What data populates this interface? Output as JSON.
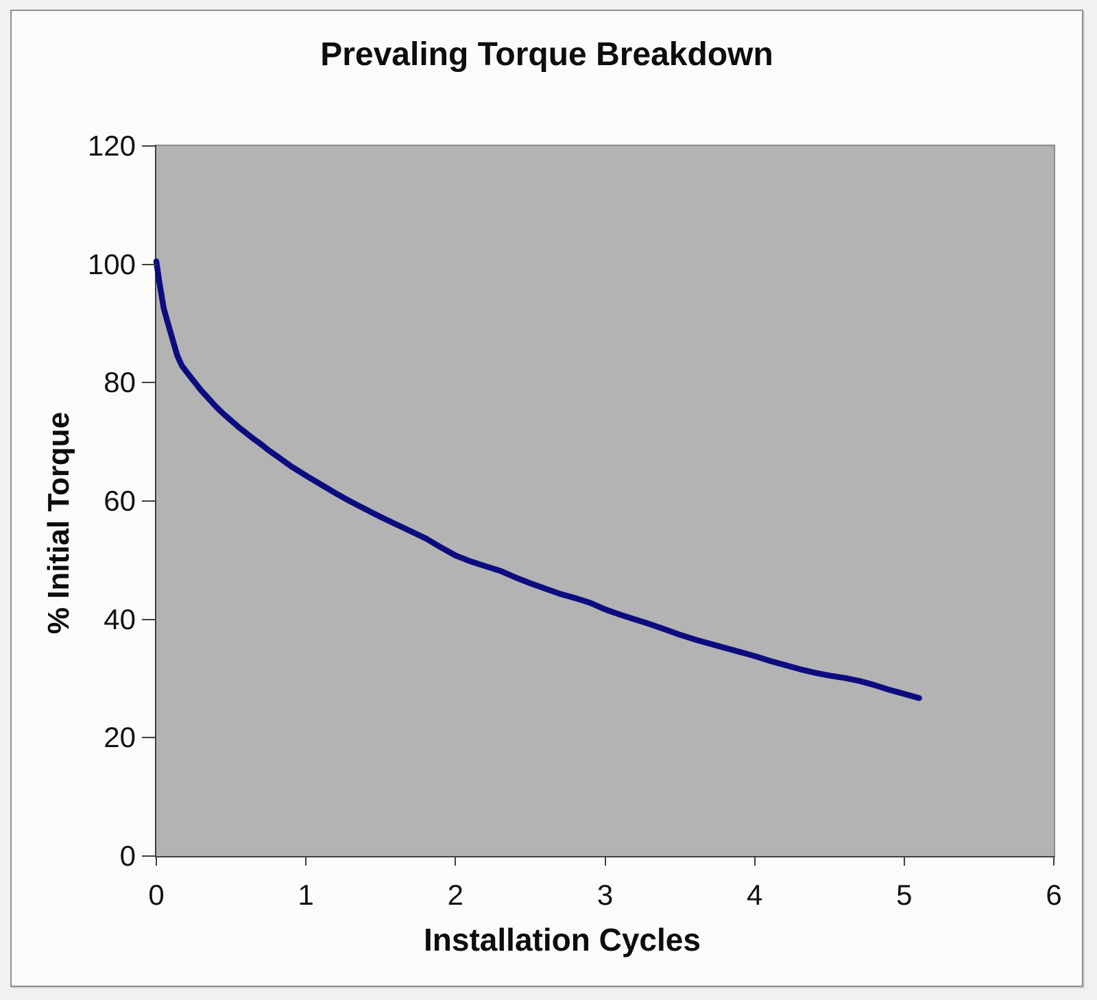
{
  "chart_data": {
    "type": "line",
    "title": "Prevaling Torque Breakdown",
    "xlabel": "Installation Cycles",
    "ylabel": "% Initial Torque",
    "xlim": [
      0,
      6
    ],
    "ylim": [
      0,
      120
    ],
    "x_ticks": [
      "0",
      "1",
      "2",
      "3",
      "4",
      "5",
      "6"
    ],
    "x_tick_values": [
      0,
      1,
      2,
      3,
      4,
      5,
      6
    ],
    "y_ticks": [
      "0",
      "20",
      "40",
      "60",
      "80",
      "100",
      "120"
    ],
    "y_tick_values": [
      0,
      20,
      40,
      60,
      80,
      100,
      120
    ],
    "grid": false,
    "legend_position": "none",
    "plot_background_color": "#b3b3b3",
    "line_color": "#0c0c80",
    "line_width": 8.5,
    "series": [
      {
        "name": "% Initial Torque",
        "points": [
          [
            0.0,
            100.5
          ],
          [
            0.02,
            97.0
          ],
          [
            0.05,
            92.5
          ],
          [
            0.08,
            89.8
          ],
          [
            0.11,
            87.2
          ],
          [
            0.14,
            84.6
          ],
          [
            0.17,
            82.9
          ],
          [
            0.2,
            81.9
          ],
          [
            0.25,
            80.3
          ],
          [
            0.3,
            78.7
          ],
          [
            0.35,
            77.3
          ],
          [
            0.4,
            75.9
          ],
          [
            0.45,
            74.7
          ],
          [
            0.5,
            73.6
          ],
          [
            0.55,
            72.5
          ],
          [
            0.6,
            71.5
          ],
          [
            0.65,
            70.5
          ],
          [
            0.7,
            69.6
          ],
          [
            0.75,
            68.6
          ],
          [
            0.8,
            67.7
          ],
          [
            0.85,
            66.8
          ],
          [
            0.9,
            65.9
          ],
          [
            0.95,
            65.1
          ],
          [
            1.0,
            64.3
          ],
          [
            1.1,
            62.8
          ],
          [
            1.2,
            61.3
          ],
          [
            1.3,
            59.9
          ],
          [
            1.4,
            58.6
          ],
          [
            1.5,
            57.3
          ],
          [
            1.6,
            56.1
          ],
          [
            1.7,
            54.9
          ],
          [
            1.8,
            53.7
          ],
          [
            1.9,
            52.2
          ],
          [
            2.0,
            50.8
          ],
          [
            2.1,
            49.8
          ],
          [
            2.2,
            49.0
          ],
          [
            2.3,
            48.2
          ],
          [
            2.4,
            47.1
          ],
          [
            2.5,
            46.1
          ],
          [
            2.6,
            45.2
          ],
          [
            2.7,
            44.3
          ],
          [
            2.8,
            43.6
          ],
          [
            2.9,
            42.8
          ],
          [
            3.0,
            41.7
          ],
          [
            3.1,
            40.8
          ],
          [
            3.2,
            40.0
          ],
          [
            3.3,
            39.2
          ],
          [
            3.4,
            38.3
          ],
          [
            3.5,
            37.4
          ],
          [
            3.6,
            36.6
          ],
          [
            3.7,
            35.9
          ],
          [
            3.8,
            35.2
          ],
          [
            3.9,
            34.5
          ],
          [
            4.0,
            33.8
          ],
          [
            4.1,
            33.0
          ],
          [
            4.2,
            32.3
          ],
          [
            4.3,
            31.6
          ],
          [
            4.4,
            31.0
          ],
          [
            4.5,
            30.5
          ],
          [
            4.6,
            30.1
          ],
          [
            4.7,
            29.6
          ],
          [
            4.8,
            28.9
          ],
          [
            4.9,
            28.1
          ],
          [
            5.0,
            27.4
          ],
          [
            5.1,
            26.7
          ]
        ]
      }
    ]
  }
}
